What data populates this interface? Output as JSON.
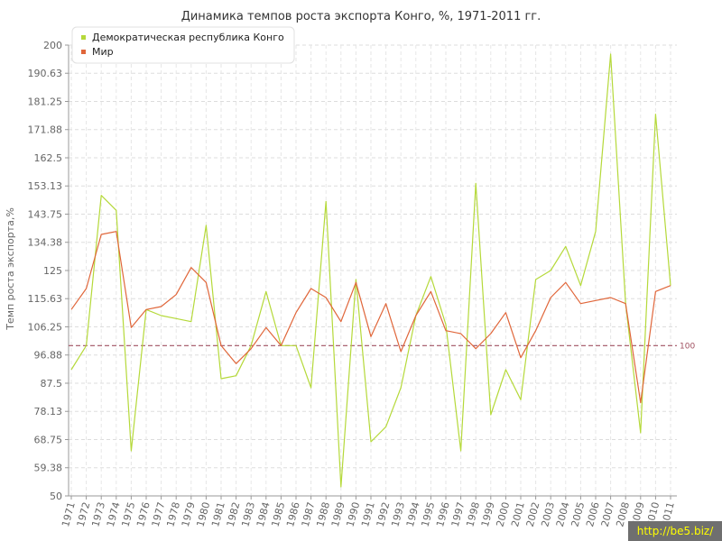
{
  "chart_data": {
    "type": "line",
    "title": "Динамика темпов роста экспорта Конго, %, 1971-2011 гг.",
    "ylabel": "Темп роста экспорта,%",
    "xlabel": "",
    "ylim": [
      50,
      200
    ],
    "yticks": [
      "50",
      "59.38",
      "68.75",
      "78.13",
      "87.5",
      "96.88",
      "106.25",
      "115.63",
      "125",
      "134.38",
      "143.75",
      "153.13",
      "162.5",
      "171.88",
      "181.25",
      "190.63",
      "200"
    ],
    "x": [
      "1971",
      "1972",
      "1973",
      "1974",
      "1975",
      "1976",
      "1977",
      "1978",
      "1979",
      "1980",
      "1981",
      "1982",
      "1983",
      "1984",
      "1985",
      "1986",
      "1987",
      "1988",
      "1989",
      "1990",
      "1991",
      "1992",
      "1993",
      "1994",
      "1995",
      "1996",
      "1997",
      "1998",
      "1999",
      "2000",
      "2001",
      "2002",
      "2003",
      "2004",
      "2005",
      "2006",
      "2007",
      "2008",
      "2009",
      "2010",
      "2011"
    ],
    "reference_line": {
      "value": 100,
      "label": "100",
      "color": "#a05060"
    },
    "legend_position": "top-left",
    "grid": true,
    "series": [
      {
        "name": "Демократическая республика Конго",
        "color": "#b5d93a",
        "values": [
          92,
          100,
          150,
          145,
          65,
          112,
          110,
          109,
          108,
          140,
          89,
          90,
          100,
          118,
          100,
          100,
          86,
          148,
          53,
          122,
          68,
          73,
          86,
          110,
          123,
          107,
          65,
          154,
          77,
          92,
          82,
          122,
          125,
          133,
          120,
          138,
          197,
          114,
          71,
          177,
          120
        ]
      },
      {
        "name": "Мир",
        "color": "#e0663a",
        "values": [
          112,
          119,
          137,
          138,
          106,
          112,
          113,
          117,
          126,
          121,
          100,
          94,
          99,
          106,
          100,
          111,
          119,
          116,
          108,
          121,
          103,
          114,
          98,
          110,
          118,
          105,
          104,
          99,
          104,
          111,
          96,
          105,
          116,
          121,
          114,
          115,
          116,
          114,
          81,
          118,
          120
        ]
      }
    ]
  },
  "watermark": "http://be5.biz/"
}
